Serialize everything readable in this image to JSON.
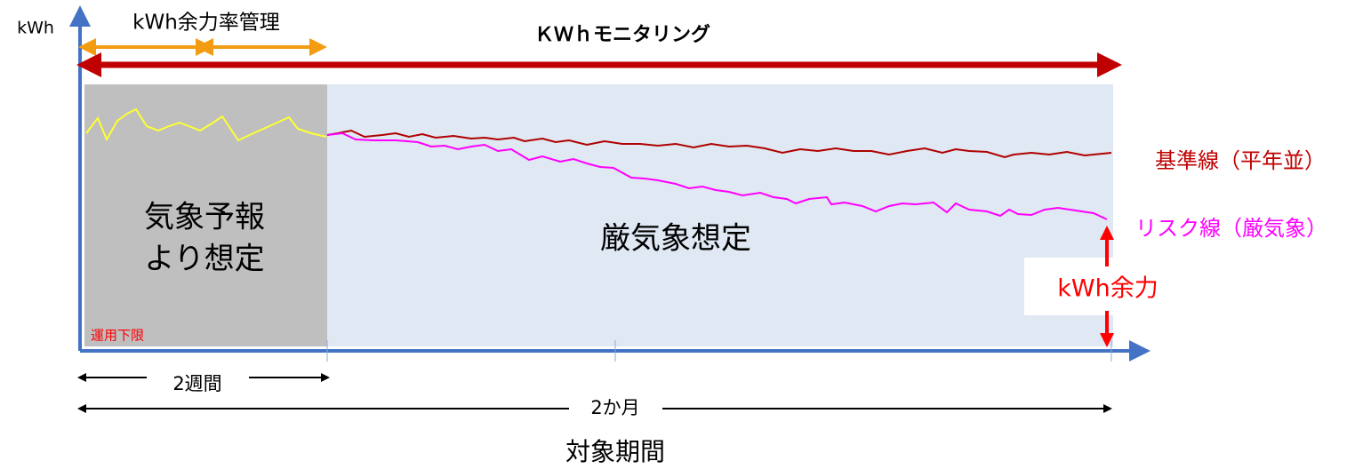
{
  "axis": {
    "y_label": "kWh"
  },
  "top": {
    "margin_management": "kWh余力率管理",
    "monitoring": "ＫＷｈモニタリング"
  },
  "regions": {
    "forecast": [
      "気象予報",
      "より想定"
    ],
    "severe": "厳気象想定"
  },
  "lines": {
    "baseline": "基準線（平年並）",
    "risk": "リスク線（厳気象）"
  },
  "reserve": "kWh余力",
  "lower_limit": "運用下限",
  "periods": {
    "two_weeks": "2週間",
    "two_months": "2か月",
    "target": "対象期間"
  }
}
